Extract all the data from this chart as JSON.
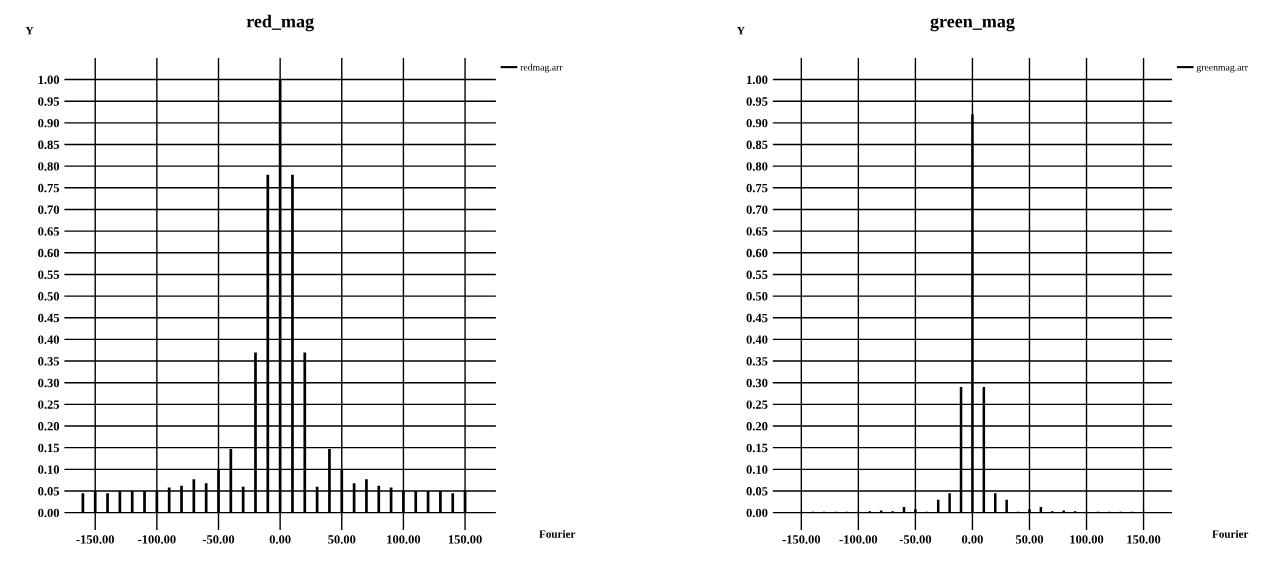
{
  "chart_data": [
    {
      "type": "bar",
      "title": "red_mag",
      "xlabel": "Fourier",
      "ylabel": "Y",
      "legend": "top right",
      "grid": true,
      "xlim": [
        -175,
        175
      ],
      "ylim": [
        -0.04,
        1.05
      ],
      "xticks": [
        {
          "value": -150,
          "label": "-150.00"
        },
        {
          "value": -100,
          "label": "-100.00"
        },
        {
          "value": -50,
          "label": "-50.00"
        },
        {
          "value": 0,
          "label": "0.00"
        },
        {
          "value": 50,
          "label": "50.00"
        },
        {
          "value": 100,
          "label": "100.00"
        },
        {
          "value": 150,
          "label": "150.00"
        }
      ],
      "yticks": [
        {
          "value": 0,
          "label": "0.00"
        },
        {
          "value": 0.05,
          "label": "0.05"
        },
        {
          "value": 0.1,
          "label": "0.10"
        },
        {
          "value": 0.15,
          "label": "0.15"
        },
        {
          "value": 0.2,
          "label": "0.20"
        },
        {
          "value": 0.25,
          "label": "0.25"
        },
        {
          "value": 0.3,
          "label": "0.30"
        },
        {
          "value": 0.35,
          "label": "0.35"
        },
        {
          "value": 0.4,
          "label": "0.40"
        },
        {
          "value": 0.45,
          "label": "0.45"
        },
        {
          "value": 0.5,
          "label": "0.50"
        },
        {
          "value": 0.55,
          "label": "0.55"
        },
        {
          "value": 0.6,
          "label": "0.60"
        },
        {
          "value": 0.65,
          "label": "0.65"
        },
        {
          "value": 0.7,
          "label": "0.70"
        },
        {
          "value": 0.75,
          "label": "0.75"
        },
        {
          "value": 0.8,
          "label": "0.80"
        },
        {
          "value": 0.85,
          "label": "0.85"
        },
        {
          "value": 0.9,
          "label": "0.90"
        },
        {
          "value": 0.95,
          "label": "0.95"
        },
        {
          "value": 1,
          "label": "1.00"
        }
      ],
      "x": [
        -160,
        -150,
        -140,
        -130,
        -120,
        -110,
        -100,
        -90,
        -80,
        -70,
        -60,
        -50,
        -40,
        -30,
        -20,
        -10,
        0,
        10,
        20,
        30,
        40,
        50,
        60,
        70,
        80,
        90,
        100,
        110,
        120,
        130,
        140,
        150
      ],
      "series": [
        {
          "name": "redmag.arr",
          "color": "#000000",
          "values": [
            0.045,
            0.05,
            0.045,
            0.05,
            0.05,
            0.05,
            0.05,
            0.058,
            0.062,
            0.077,
            0.068,
            0.1,
            0.147,
            0.06,
            0.37,
            0.78,
            1.0,
            0.78,
            0.37,
            0.06,
            0.147,
            0.1,
            0.068,
            0.077,
            0.062,
            0.058,
            0.05,
            0.05,
            0.05,
            0.05,
            0.045,
            0.05
          ]
        }
      ]
    },
    {
      "type": "bar",
      "title": "green_mag",
      "xlabel": "Fourier",
      "ylabel": "Y",
      "legend": "top right",
      "grid": true,
      "xlim": [
        -175,
        175
      ],
      "ylim": [
        -0.04,
        1.05
      ],
      "xticks": [
        {
          "value": -150,
          "label": "-150.00"
        },
        {
          "value": -100,
          "label": "-100.00"
        },
        {
          "value": -50,
          "label": "-50.00"
        },
        {
          "value": 0,
          "label": "0.00"
        },
        {
          "value": 50,
          "label": "50.00"
        },
        {
          "value": 100,
          "label": "100.00"
        },
        {
          "value": 150,
          "label": "150.00"
        }
      ],
      "yticks": [
        {
          "value": 0,
          "label": "0.00"
        },
        {
          "value": 0.05,
          "label": "0.05"
        },
        {
          "value": 0.1,
          "label": "0.10"
        },
        {
          "value": 0.15,
          "label": "0.15"
        },
        {
          "value": 0.2,
          "label": "0.20"
        },
        {
          "value": 0.25,
          "label": "0.25"
        },
        {
          "value": 0.3,
          "label": "0.30"
        },
        {
          "value": 0.35,
          "label": "0.35"
        },
        {
          "value": 0.4,
          "label": "0.40"
        },
        {
          "value": 0.45,
          "label": "0.45"
        },
        {
          "value": 0.5,
          "label": "0.50"
        },
        {
          "value": 0.55,
          "label": "0.55"
        },
        {
          "value": 0.6,
          "label": "0.60"
        },
        {
          "value": 0.65,
          "label": "0.65"
        },
        {
          "value": 0.7,
          "label": "0.70"
        },
        {
          "value": 0.75,
          "label": "0.75"
        },
        {
          "value": 0.8,
          "label": "0.80"
        },
        {
          "value": 0.85,
          "label": "0.85"
        },
        {
          "value": 0.9,
          "label": "0.90"
        },
        {
          "value": 0.95,
          "label": "0.95"
        },
        {
          "value": 1,
          "label": "1.00"
        }
      ],
      "x": [
        -150,
        -140,
        -130,
        -120,
        -110,
        -100,
        -90,
        -80,
        -70,
        -60,
        -50,
        -40,
        -30,
        -20,
        -10,
        0,
        10,
        20,
        30,
        40,
        50,
        60,
        70,
        80,
        90,
        100,
        110,
        120,
        130,
        140,
        150
      ],
      "series": [
        {
          "name": "greenmag.arr",
          "color": "#000000",
          "values": [
            0.002,
            0.002,
            0.002,
            0.002,
            0.002,
            0.002,
            0.003,
            0.005,
            0.003,
            0.013,
            0.008,
            0.002,
            0.03,
            0.045,
            0.29,
            0.92,
            0.29,
            0.045,
            0.03,
            0.002,
            0.008,
            0.013,
            0.003,
            0.005,
            0.003,
            0.002,
            0.002,
            0.002,
            0.002,
            0.002,
            0.002
          ]
        }
      ]
    }
  ]
}
